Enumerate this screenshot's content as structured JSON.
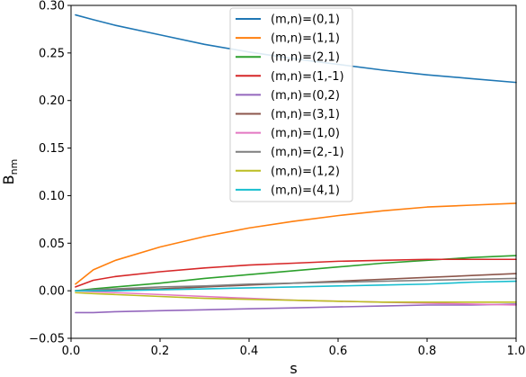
{
  "chart_data": {
    "type": "line",
    "title": "",
    "xlabel": "s",
    "ylabel": "B",
    "ylabel_sub": "nm",
    "xlim": [
      0.0,
      1.0
    ],
    "ylim": [
      -0.05,
      0.3
    ],
    "x_ticks": [
      0.0,
      0.2,
      0.4,
      0.6,
      0.8,
      1.0
    ],
    "x_tick_labels": [
      "0.0",
      "0.2",
      "0.4",
      "0.6",
      "0.8",
      "1.0"
    ],
    "y_ticks": [
      -0.05,
      0.0,
      0.05,
      0.1,
      0.15,
      0.2,
      0.25,
      0.3
    ],
    "y_tick_labels": [
      "−0.05",
      "0.00",
      "0.05",
      "0.10",
      "0.15",
      "0.20",
      "0.25",
      "0.30"
    ],
    "grid": false,
    "legend_position": "top-center",
    "x": [
      0.01,
      0.05,
      0.1,
      0.2,
      0.3,
      0.4,
      0.5,
      0.6,
      0.7,
      0.8,
      0.9,
      1.0
    ],
    "series": [
      {
        "name": "(m,n)=(0,1)",
        "color": "#1f77b4",
        "values": [
          0.29,
          0.285,
          0.279,
          0.269,
          0.259,
          0.251,
          0.244,
          0.238,
          0.232,
          0.227,
          0.223,
          0.219
        ]
      },
      {
        "name": "(m,n)=(1,1)",
        "color": "#ff7f0e",
        "values": [
          0.007,
          0.022,
          0.032,
          0.046,
          0.057,
          0.066,
          0.073,
          0.079,
          0.084,
          0.088,
          0.09,
          0.092
        ]
      },
      {
        "name": "(m,n)=(2,1)",
        "color": "#2ca02c",
        "values": [
          0.0,
          0.002,
          0.004,
          0.008,
          0.013,
          0.017,
          0.021,
          0.025,
          0.029,
          0.032,
          0.035,
          0.037
        ]
      },
      {
        "name": "(m,n)=(1,-1)",
        "color": "#d62728",
        "values": [
          0.004,
          0.011,
          0.015,
          0.02,
          0.024,
          0.027,
          0.029,
          0.031,
          0.032,
          0.033,
          0.033,
          0.033
        ]
      },
      {
        "name": "(m,n)=(0,2)",
        "color": "#9467bd",
        "values": [
          -0.023,
          -0.023,
          -0.022,
          -0.021,
          -0.02,
          -0.019,
          -0.018,
          -0.017,
          -0.016,
          -0.015,
          -0.015,
          -0.014
        ]
      },
      {
        "name": "(m,n)=(3,1)",
        "color": "#8c564b",
        "values": [
          0.0,
          0.0,
          0.001,
          0.002,
          0.004,
          0.006,
          0.008,
          0.01,
          0.012,
          0.014,
          0.016,
          0.018
        ]
      },
      {
        "name": "(m,n)=(1,0)",
        "color": "#e377c2",
        "values": [
          0.0,
          -0.001,
          -0.002,
          -0.004,
          -0.006,
          -0.008,
          -0.01,
          -0.011,
          -0.012,
          -0.013,
          -0.014,
          -0.015
        ]
      },
      {
        "name": "(m,n)=(2,-1)",
        "color": "#7f7f7f",
        "values": [
          0.0,
          0.001,
          0.002,
          0.004,
          0.005,
          0.007,
          0.008,
          0.009,
          0.01,
          0.011,
          0.012,
          0.013
        ]
      },
      {
        "name": "(m,n)=(1,2)",
        "color": "#bcbd22",
        "values": [
          -0.002,
          -0.003,
          -0.004,
          -0.006,
          -0.008,
          -0.009,
          -0.01,
          -0.011,
          -0.012,
          -0.012,
          -0.012,
          -0.012
        ]
      },
      {
        "name": "(m,n)=(4,1)",
        "color": "#17becf",
        "values": [
          0.0,
          0.0,
          0.0,
          0.001,
          0.002,
          0.003,
          0.004,
          0.005,
          0.006,
          0.007,
          0.009,
          0.01
        ]
      }
    ]
  }
}
